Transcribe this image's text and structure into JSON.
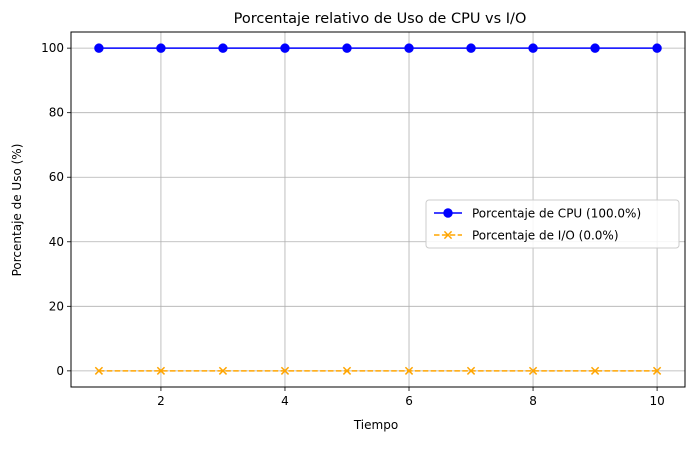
{
  "chart_data": {
    "type": "line",
    "title": "Porcentaje relativo de Uso de CPU vs I/O",
    "xlabel": "Tiempo",
    "ylabel": "Porcentaje de Uso (%)",
    "x": [
      1,
      2,
      3,
      4,
      5,
      6,
      7,
      8,
      9,
      10
    ],
    "xlim": [
      0.55,
      10.45
    ],
    "ylim": [
      -5,
      105
    ],
    "xticks": [
      2,
      4,
      6,
      8,
      10
    ],
    "yticks": [
      0,
      20,
      40,
      60,
      80,
      100
    ],
    "grid": true,
    "legend_position": "center-right",
    "series": [
      {
        "name": "Porcentaje de CPU (100.0%)",
        "values": [
          100,
          100,
          100,
          100,
          100,
          100,
          100,
          100,
          100,
          100
        ],
        "color": "#0000ff",
        "marker": "circle",
        "linestyle": "solid"
      },
      {
        "name": "Porcentaje de I/O (0.0%)",
        "values": [
          0,
          0,
          0,
          0,
          0,
          0,
          0,
          0,
          0,
          0
        ],
        "color": "#ffa500",
        "marker": "x",
        "linestyle": "dashed"
      }
    ]
  }
}
